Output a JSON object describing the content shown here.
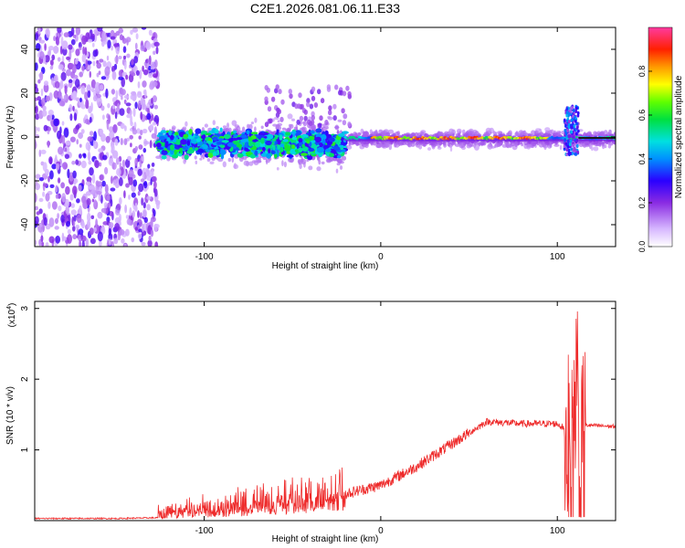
{
  "title": "C2E1.2026.081.06.11.E33",
  "chart_data": [
    {
      "type": "heatmap",
      "title": "C2E1.2026.081.06.11.E33",
      "xlabel": "Height of straight line (km)",
      "ylabel": "Frequency (Hz)",
      "xlim": [
        -196,
        133
      ],
      "ylim": [
        -50,
        50
      ],
      "x_ticks": [
        -100,
        0,
        100
      ],
      "y_ticks": [
        40,
        20,
        0,
        -20,
        -40
      ],
      "x_tick_labels": [
        "-100",
        "0",
        "100"
      ],
      "y_tick_labels": [
        "40",
        "20",
        "0",
        "-20",
        "-40"
      ],
      "colorbar": {
        "label": "Normalized spectral amplitude",
        "range": [
          0,
          1
        ],
        "ticks": [
          0.0,
          0.2,
          0.4,
          0.6,
          0.8
        ],
        "tick_labels": [
          "0.0",
          "0.2",
          "0.4",
          "0.6",
          "0.8"
        ]
      },
      "features": [
        {
          "region": "noise",
          "x_range": [
            -196,
            -126
          ],
          "y_range": [
            -50,
            50
          ],
          "amplitude": 0.15
        },
        {
          "region": "diffuse_band",
          "x_range": [
            -126,
            -20
          ],
          "center_freq": -3,
          "amplitude": 0.3
        },
        {
          "region": "narrow_line",
          "x_range": [
            -20,
            133
          ],
          "center_freq": -1,
          "amplitude": 0.85
        },
        {
          "region": "burst",
          "x_range": [
            104,
            112
          ],
          "y_range": [
            -8,
            15
          ],
          "amplitude": 0.5
        }
      ]
    },
    {
      "type": "line",
      "xlabel": "Height of straight line (km)",
      "ylabel": "SNR (10 * v/v)",
      "y_multiplier": "(x10",
      "y_multiplier_exp": "4",
      "y_multiplier_close": ")",
      "xlim": [
        -196,
        133
      ],
      "ylim": [
        0,
        3.1
      ],
      "x_ticks": [
        -100,
        0,
        100
      ],
      "y_ticks": [
        1,
        2,
        3
      ],
      "x_tick_labels": [
        "-100",
        "0",
        "100"
      ],
      "y_tick_labels": [
        "1",
        "2",
        "3"
      ],
      "color": "#ee2b2b",
      "series": [
        {
          "name": "SNR",
          "x": [
            -196,
            -150,
            -126,
            -110,
            -100,
            -80,
            -60,
            -40,
            -20,
            0,
            20,
            40,
            60,
            80,
            100,
            104,
            108,
            111,
            113,
            116,
            133
          ],
          "y": [
            0.03,
            0.03,
            0.04,
            0.08,
            0.12,
            0.17,
            0.25,
            0.3,
            0.38,
            0.5,
            0.76,
            1.08,
            1.4,
            1.37,
            1.37,
            1.3,
            0.6,
            2.2,
            0.4,
            1.35,
            1.33
          ]
        }
      ]
    }
  ]
}
